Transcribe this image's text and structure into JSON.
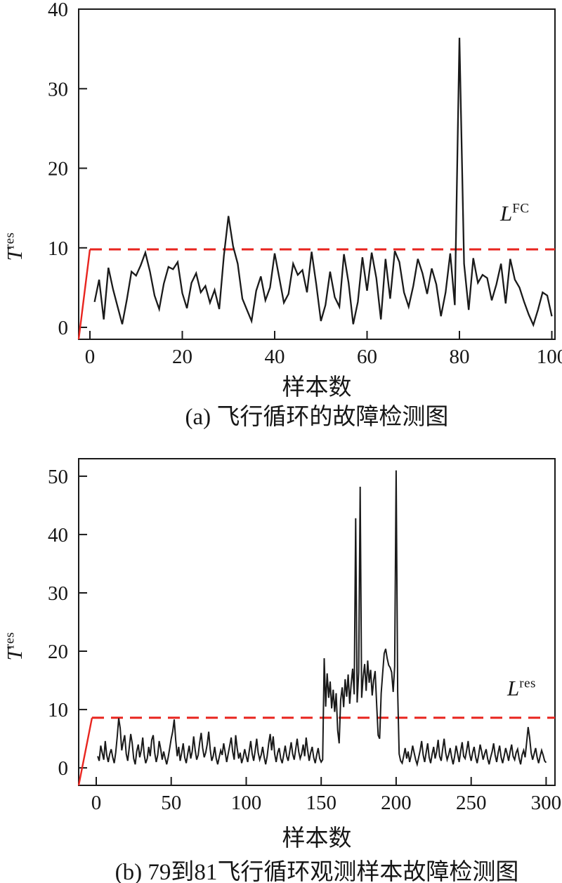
{
  "figure": {
    "background": "#ffffff",
    "text_color": "#161616"
  },
  "chart_data": [
    {
      "id": "a",
      "type": "line",
      "caption": "(a) 飞行循环的故障检测图",
      "xlabel": "样本数",
      "ylabel": {
        "base": "T",
        "sup": "res"
      },
      "x_ticks": [
        0,
        20,
        40,
        60,
        80,
        100
      ],
      "y_ticks": [
        0,
        10,
        20,
        30,
        40
      ],
      "xlim": [
        0,
        100
      ],
      "ylim": [
        0,
        40
      ],
      "grid": false,
      "legend": "none",
      "line_color": "#1a1a1a",
      "axis_color": "#1a1a1a",
      "threshold": {
        "value": 9.8,
        "label": {
          "base": "L",
          "sup": "FC"
        },
        "color": "#e8251f",
        "style": "dashed"
      },
      "x_start": 1,
      "values": [
        3.2,
        6.0,
        1.0,
        7.5,
        4.8,
        2.6,
        0.4,
        3.5,
        7.0,
        6.5,
        7.8,
        9.4,
        7.0,
        4.0,
        2.3,
        5.5,
        7.6,
        7.3,
        8.2,
        4.3,
        2.4,
        5.6,
        6.8,
        4.4,
        5.2,
        3.1,
        4.7,
        2.3,
        9.0,
        14.0,
        10.2,
        8.0,
        3.6,
        2.2,
        0.8,
        4.6,
        6.4,
        3.4,
        5.0,
        9.3,
        6.2,
        3.1,
        4.2,
        8.0,
        6.6,
        7.2,
        4.4,
        9.5,
        5.4,
        0.8,
        2.8,
        7.0,
        3.8,
        2.6,
        9.2,
        5.6,
        0.4,
        3.2,
        8.8,
        4.6,
        9.4,
        6.2,
        1.0,
        8.6,
        3.6,
        9.6,
        8.2,
        4.4,
        2.6,
        5.2,
        8.6,
        6.8,
        4.2,
        7.4,
        5.4,
        1.4,
        4.4,
        9.3,
        2.8,
        36.4,
        8.0,
        2.2,
        8.7,
        5.6,
        6.6,
        6.2,
        3.4,
        5.4,
        8.0,
        3.0,
        8.6,
        6.0,
        5.0,
        3.2,
        1.6,
        0.3,
        2.2,
        4.4,
        4.0,
        1.4
      ]
    },
    {
      "id": "b",
      "type": "line",
      "caption": "(b) 79到81飞行循环观测样本故障检测图",
      "xlabel": "样本数",
      "ylabel": {
        "base": "T",
        "sup": "res"
      },
      "x_ticks": [
        0,
        50,
        100,
        150,
        200,
        250,
        300
      ],
      "y_ticks": [
        0,
        10,
        20,
        30,
        40,
        50
      ],
      "xlim": [
        0,
        300
      ],
      "ylim": [
        0,
        50
      ],
      "grid": false,
      "legend": "none",
      "line_color": "#1a1a1a",
      "axis_color": "#1a1a1a",
      "threshold": {
        "value": 8.6,
        "label": {
          "base": "L",
          "sup": "res"
        },
        "color": "#e8251f",
        "style": "dashed"
      },
      "x_start": 1,
      "values": [
        2.0,
        1.2,
        3.8,
        2.6,
        1.4,
        4.6,
        2.2,
        1.0,
        2.4,
        3.2,
        1.8,
        0.8,
        2.6,
        5.4,
        8.5,
        6.8,
        3.0,
        4.4,
        5.6,
        2.4,
        1.2,
        3.4,
        5.8,
        4.2,
        1.6,
        0.6,
        2.8,
        4.0,
        1.8,
        3.0,
        5.2,
        2.2,
        0.8,
        1.6,
        3.6,
        2.0,
        4.8,
        5.6,
        2.6,
        1.0,
        2.2,
        4.6,
        3.2,
        1.4,
        2.8,
        1.6,
        0.6,
        1.8,
        3.4,
        5.0,
        6.2,
        8.3,
        4.8,
        2.0,
        3.6,
        1.2,
        2.6,
        4.2,
        1.8,
        0.8,
        2.4,
        3.8,
        1.6,
        2.8,
        5.4,
        3.0,
        1.4,
        2.2,
        4.4,
        6.0,
        3.4,
        1.8,
        2.6,
        4.0,
        6.2,
        3.2,
        1.2,
        2.0,
        3.6,
        1.6,
        0.6,
        1.8,
        3.0,
        2.2,
        4.2,
        2.6,
        1.0,
        2.4,
        3.8,
        5.2,
        2.8,
        1.4,
        5.6,
        3.4,
        1.6,
        2.6,
        0.8,
        1.8,
        3.2,
        2.0,
        1.0,
        2.8,
        4.6,
        2.4,
        1.2,
        3.0,
        5.0,
        2.6,
        1.4,
        2.2,
        3.6,
        1.8,
        0.6,
        2.0,
        4.2,
        5.8,
        3.0,
        5.4,
        2.4,
        1.0,
        2.6,
        3.4,
        1.6,
        0.8,
        2.2,
        3.8,
        2.0,
        1.2,
        2.8,
        4.4,
        2.4,
        1.4,
        3.2,
        5.0,
        2.8,
        1.6,
        2.4,
        4.0,
        2.0,
        5.2,
        3.0,
        1.2,
        2.6,
        3.6,
        1.8,
        0.8,
        2.2,
        3.4,
        1.6,
        1.0,
        1.4,
        18.8,
        10.5,
        16.2,
        12.0,
        14.8,
        10.2,
        13.4,
        9.6,
        12.8,
        6.4,
        4.2,
        11.6,
        13.8,
        10.4,
        15.2,
        12.2,
        16.0,
        11.0,
        14.4,
        17.0,
        12.6,
        42.8,
        11.2,
        16.4,
        48.2,
        12.0,
        15.6,
        17.8,
        13.2,
        18.4,
        14.6,
        16.8,
        12.4,
        15.0,
        16.6,
        10.8,
        5.6,
        5.0,
        12.8,
        16.2,
        19.6,
        20.4,
        18.8,
        17.6,
        17.2,
        16.4,
        13.0,
        17.4,
        51.0,
        13.0,
        2.4,
        1.2,
        0.8,
        2.0,
        3.4,
        1.6,
        2.8,
        1.0,
        2.2,
        3.8,
        2.6,
        1.4,
        0.6,
        1.8,
        3.0,
        4.6,
        2.2,
        1.0,
        2.6,
        4.2,
        1.8,
        0.8,
        2.4,
        3.6,
        1.6,
        2.8,
        4.8,
        2.0,
        1.2,
        3.2,
        5.0,
        2.6,
        1.4,
        2.2,
        3.4,
        1.8,
        0.6,
        2.0,
        3.8,
        2.4,
        1.0,
        2.8,
        4.4,
        2.0,
        1.6,
        3.0,
        4.6,
        2.4,
        1.2,
        2.6,
        3.6,
        1.8,
        0.8,
        2.2,
        4.0,
        2.8,
        1.4,
        2.4,
        3.2,
        1.6,
        0.6,
        1.8,
        2.8,
        4.2,
        2.2,
        1.0,
        2.6,
        3.8,
        1.8,
        0.8,
        2.0,
        3.4,
        2.4,
        1.2,
        2.8,
        4.0,
        2.0,
        1.4,
        2.6,
        3.2,
        1.6,
        0.6,
        2.2,
        3.0,
        1.8,
        4.4,
        7.0,
        5.2,
        2.6,
        1.4,
        2.4,
        3.4,
        1.8,
        0.8,
        2.0,
        3.0,
        2.2,
        1.2,
        0.9
      ]
    }
  ]
}
